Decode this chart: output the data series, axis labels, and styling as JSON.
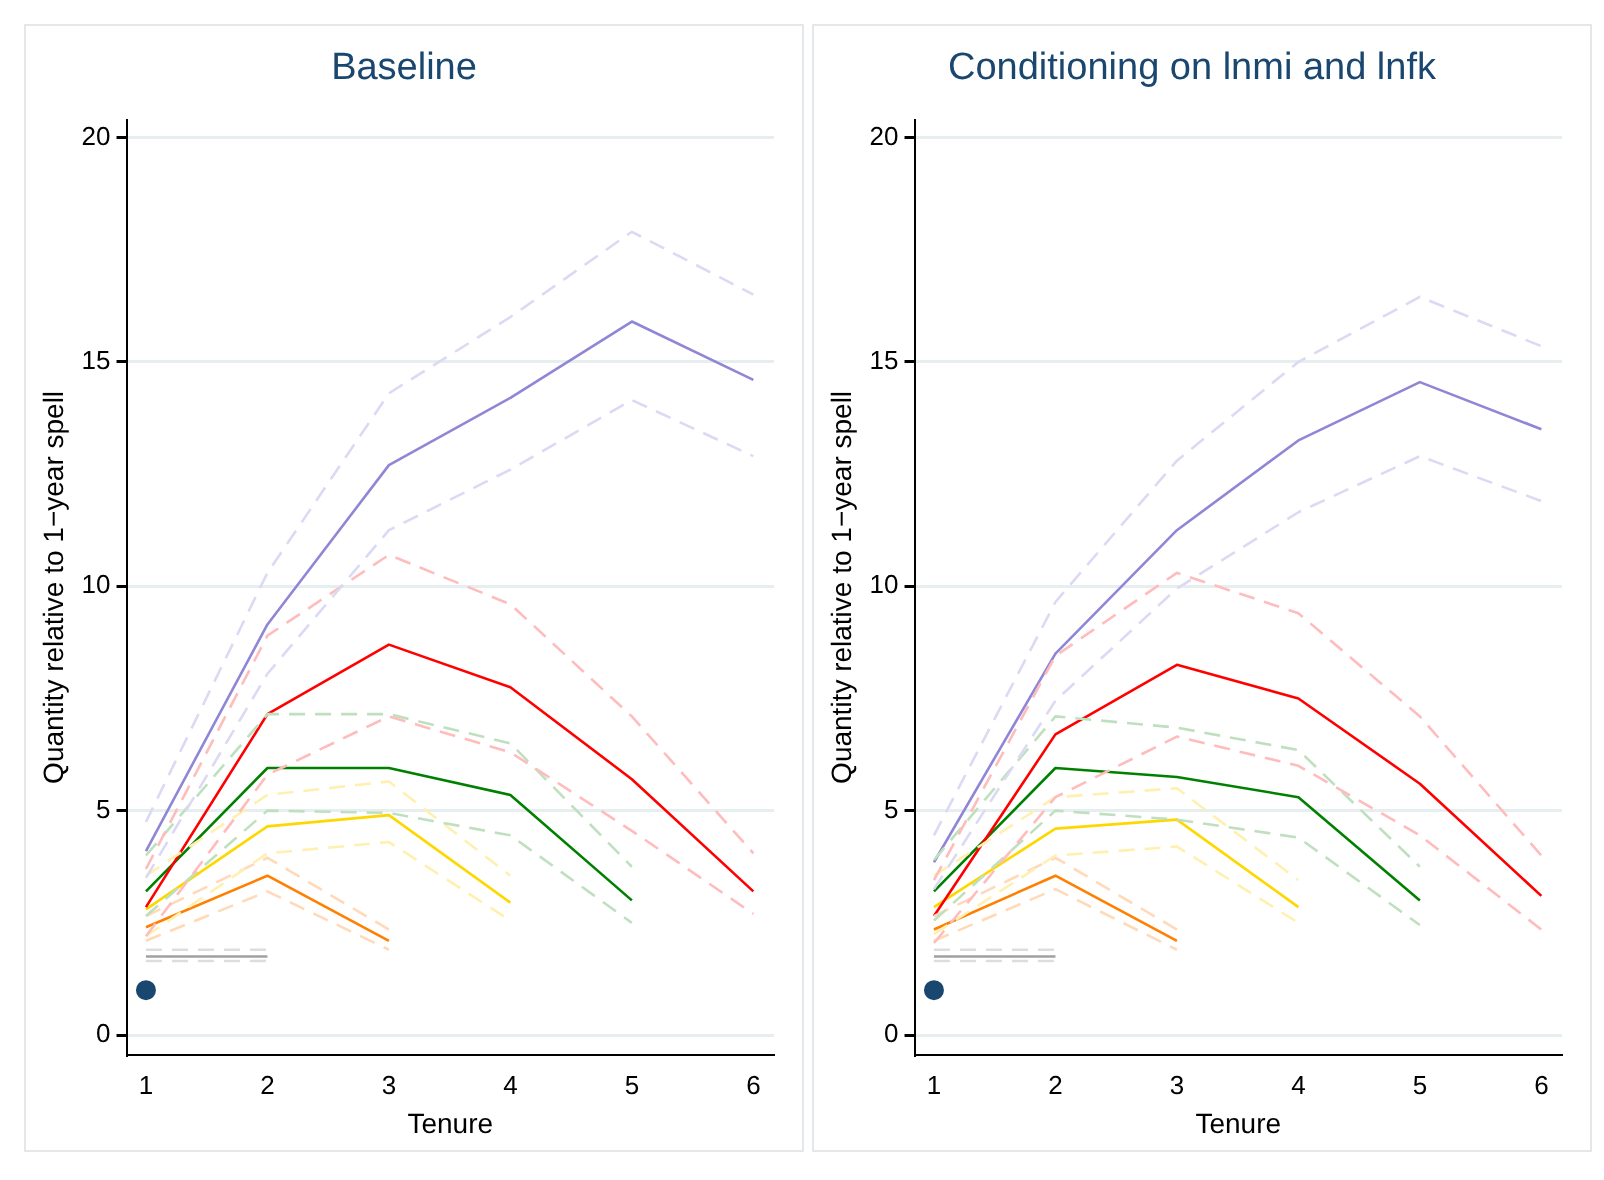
{
  "chart_data": [
    {
      "type": "line",
      "title": "Baseline",
      "xlabel": "Tenure",
      "ylabel": "Quantity relative to 1−year spell",
      "xlim": [
        0.84,
        6.17
      ],
      "xticks": [
        1,
        2,
        3,
        4,
        5,
        6
      ],
      "ylim": [
        -0.45,
        20.4
      ],
      "yticks": [
        0,
        5,
        10,
        15,
        20
      ],
      "grid": "y",
      "line_style": "solid",
      "series": [
        {
          "color": "#dcd9f4",
          "line_style": "dashed",
          "x": [
            1,
            2,
            3,
            4,
            5,
            6
          ],
          "values": [
            3.5,
            8.05,
            11.25,
            12.6,
            14.15,
            12.9
          ]
        },
        {
          "color": "#dcd9f4",
          "line_style": "dashed",
          "x": [
            1,
            2,
            3,
            4,
            5,
            6
          ],
          "values": [
            4.75,
            10.3,
            14.3,
            16.0,
            17.9,
            16.5
          ]
        },
        {
          "color": "#ffbcbc",
          "line_style": "dashed",
          "x": [
            1,
            2,
            3,
            4,
            5,
            6
          ],
          "values": [
            2.2,
            5.8,
            7.1,
            6.3,
            4.55,
            2.7
          ]
        },
        {
          "color": "#ffbcbc",
          "line_style": "dashed",
          "x": [
            1,
            2,
            3,
            4,
            5,
            6
          ],
          "values": [
            3.7,
            8.9,
            10.7,
            9.6,
            7.1,
            4.05
          ]
        },
        {
          "color": "#bfe0bf",
          "line_style": "dashed",
          "x": [
            1,
            2,
            3,
            4,
            5
          ],
          "values": [
            2.65,
            5.0,
            4.95,
            4.45,
            2.5
          ]
        },
        {
          "color": "#bfe0bf",
          "line_style": "dashed",
          "x": [
            1,
            2,
            3,
            4,
            5
          ],
          "values": [
            4.0,
            7.15,
            7.15,
            6.5,
            3.75
          ]
        },
        {
          "color": "#fff0b0",
          "line_style": "dashed",
          "x": [
            1,
            2,
            3,
            4
          ],
          "values": [
            2.2,
            4.05,
            4.3,
            2.55
          ]
        },
        {
          "color": "#fff0b0",
          "line_style": "dashed",
          "x": [
            1,
            2,
            3,
            4
          ],
          "values": [
            3.55,
            5.35,
            5.65,
            3.55
          ]
        },
        {
          "color": "#ffd9b8",
          "line_style": "dashed",
          "x": [
            1,
            2,
            3
          ],
          "values": [
            2.1,
            3.2,
            1.9
          ]
        },
        {
          "color": "#ffd9b8",
          "line_style": "dashed",
          "x": [
            1,
            2,
            3
          ],
          "values": [
            2.65,
            3.95,
            2.35
          ]
        },
        {
          "color": "#dddddd",
          "line_style": "dashed",
          "x": [
            1,
            2
          ],
          "values": [
            1.65,
            1.65
          ]
        },
        {
          "color": "#dddddd",
          "line_style": "dashed",
          "x": [
            1,
            2
          ],
          "values": [
            1.9,
            1.9
          ]
        },
        {
          "color": "#8f86d6",
          "x": [
            1,
            2,
            3,
            4,
            5,
            6
          ],
          "values": [
            4.1,
            9.15,
            12.7,
            14.2,
            15.9,
            14.6
          ]
        },
        {
          "color": "#ff0000",
          "x": [
            1,
            2,
            3,
            4,
            5,
            6
          ],
          "values": [
            2.85,
            7.15,
            8.7,
            7.75,
            5.7,
            3.2
          ]
        },
        {
          "color": "#008000",
          "x": [
            1,
            2,
            3,
            4,
            5
          ],
          "values": [
            3.2,
            5.95,
            5.95,
            5.35,
            3.0
          ]
        },
        {
          "color": "#ffd700",
          "x": [
            1,
            2,
            3,
            4
          ],
          "values": [
            2.8,
            4.65,
            4.9,
            2.95
          ]
        },
        {
          "color": "#ff7f00",
          "x": [
            1,
            2,
            3
          ],
          "values": [
            2.4,
            3.55,
            2.1
          ]
        },
        {
          "color": "#a0a0a0",
          "x": [
            1,
            2
          ],
          "values": [
            1.75,
            1.75
          ]
        },
        {
          "type": "scatter",
          "marker": "circle",
          "color": "#1a476f",
          "x": [
            1
          ],
          "values": [
            1.0
          ]
        }
      ]
    },
    {
      "type": "line",
      "title": "Conditioning on lnmi and lnfk",
      "xlabel": "Tenure",
      "ylabel": "Quantity relative to 1−year spell",
      "xlim": [
        0.84,
        6.17
      ],
      "xticks": [
        1,
        2,
        3,
        4,
        5,
        6
      ],
      "ylim": [
        -0.45,
        20.4
      ],
      "yticks": [
        0,
        5,
        10,
        15,
        20
      ],
      "grid": "y",
      "line_style": "solid",
      "series": [
        {
          "color": "#dcd9f4",
          "line_style": "dashed",
          "x": [
            1,
            2,
            3,
            4,
            5,
            6
          ],
          "values": [
            3.25,
            7.45,
            9.95,
            11.65,
            12.9,
            11.9
          ]
        },
        {
          "color": "#dcd9f4",
          "line_style": "dashed",
          "x": [
            1,
            2,
            3,
            4,
            5,
            6
          ],
          "values": [
            4.45,
            9.65,
            12.8,
            15.0,
            16.45,
            15.35
          ]
        },
        {
          "color": "#ffbcbc",
          "line_style": "dashed",
          "x": [
            1,
            2,
            3,
            4,
            5,
            6
          ],
          "values": [
            2.05,
            5.3,
            6.65,
            6.0,
            4.45,
            2.35
          ]
        },
        {
          "color": "#ffbcbc",
          "line_style": "dashed",
          "x": [
            1,
            2,
            3,
            4,
            5,
            6
          ],
          "values": [
            3.45,
            8.45,
            10.3,
            9.4,
            7.1,
            4.0
          ]
        },
        {
          "color": "#bfe0bf",
          "line_style": "dashed",
          "x": [
            1,
            2,
            3,
            4,
            5
          ],
          "values": [
            2.55,
            5.0,
            4.8,
            4.4,
            2.45
          ]
        },
        {
          "color": "#bfe0bf",
          "line_style": "dashed",
          "x": [
            1,
            2,
            3,
            4,
            5
          ],
          "values": [
            3.9,
            7.1,
            6.85,
            6.35,
            3.75
          ]
        },
        {
          "color": "#fff0b0",
          "line_style": "dashed",
          "x": [
            1,
            2,
            3,
            4
          ],
          "values": [
            2.25,
            4.0,
            4.2,
            2.5
          ]
        },
        {
          "color": "#fff0b0",
          "line_style": "dashed",
          "x": [
            1,
            2,
            3,
            4
          ],
          "values": [
            3.55,
            5.3,
            5.5,
            3.45
          ]
        },
        {
          "color": "#ffd9b8",
          "line_style": "dashed",
          "x": [
            1,
            2,
            3
          ],
          "values": [
            2.1,
            3.25,
            1.9
          ]
        },
        {
          "color": "#ffd9b8",
          "line_style": "dashed",
          "x": [
            1,
            2,
            3
          ],
          "values": [
            2.65,
            3.95,
            2.35
          ]
        },
        {
          "color": "#dddddd",
          "line_style": "dashed",
          "x": [
            1,
            2
          ],
          "values": [
            1.65,
            1.65
          ]
        },
        {
          "color": "#dddddd",
          "line_style": "dashed",
          "x": [
            1,
            2
          ],
          "values": [
            1.9,
            1.9
          ]
        },
        {
          "color": "#8f86d6",
          "x": [
            1,
            2,
            3,
            4,
            5,
            6
          ],
          "values": [
            3.85,
            8.5,
            11.25,
            13.25,
            14.55,
            13.5
          ]
        },
        {
          "color": "#ff0000",
          "x": [
            1,
            2,
            3,
            4,
            5,
            6
          ],
          "values": [
            2.65,
            6.7,
            8.25,
            7.5,
            5.6,
            3.1
          ]
        },
        {
          "color": "#008000",
          "x": [
            1,
            2,
            3,
            4,
            5
          ],
          "values": [
            3.2,
            5.95,
            5.75,
            5.3,
            3.0
          ]
        },
        {
          "color": "#ffd700",
          "x": [
            1,
            2,
            3,
            4
          ],
          "values": [
            2.85,
            4.6,
            4.8,
            2.85
          ]
        },
        {
          "color": "#ff7f00",
          "x": [
            1,
            2,
            3
          ],
          "values": [
            2.35,
            3.55,
            2.1
          ]
        },
        {
          "color": "#a0a0a0",
          "x": [
            1,
            2
          ],
          "values": [
            1.75,
            1.75
          ]
        },
        {
          "type": "scatter",
          "marker": "circle",
          "color": "#1a476f",
          "x": [
            1
          ],
          "values": [
            1.0
          ]
        }
      ]
    }
  ]
}
